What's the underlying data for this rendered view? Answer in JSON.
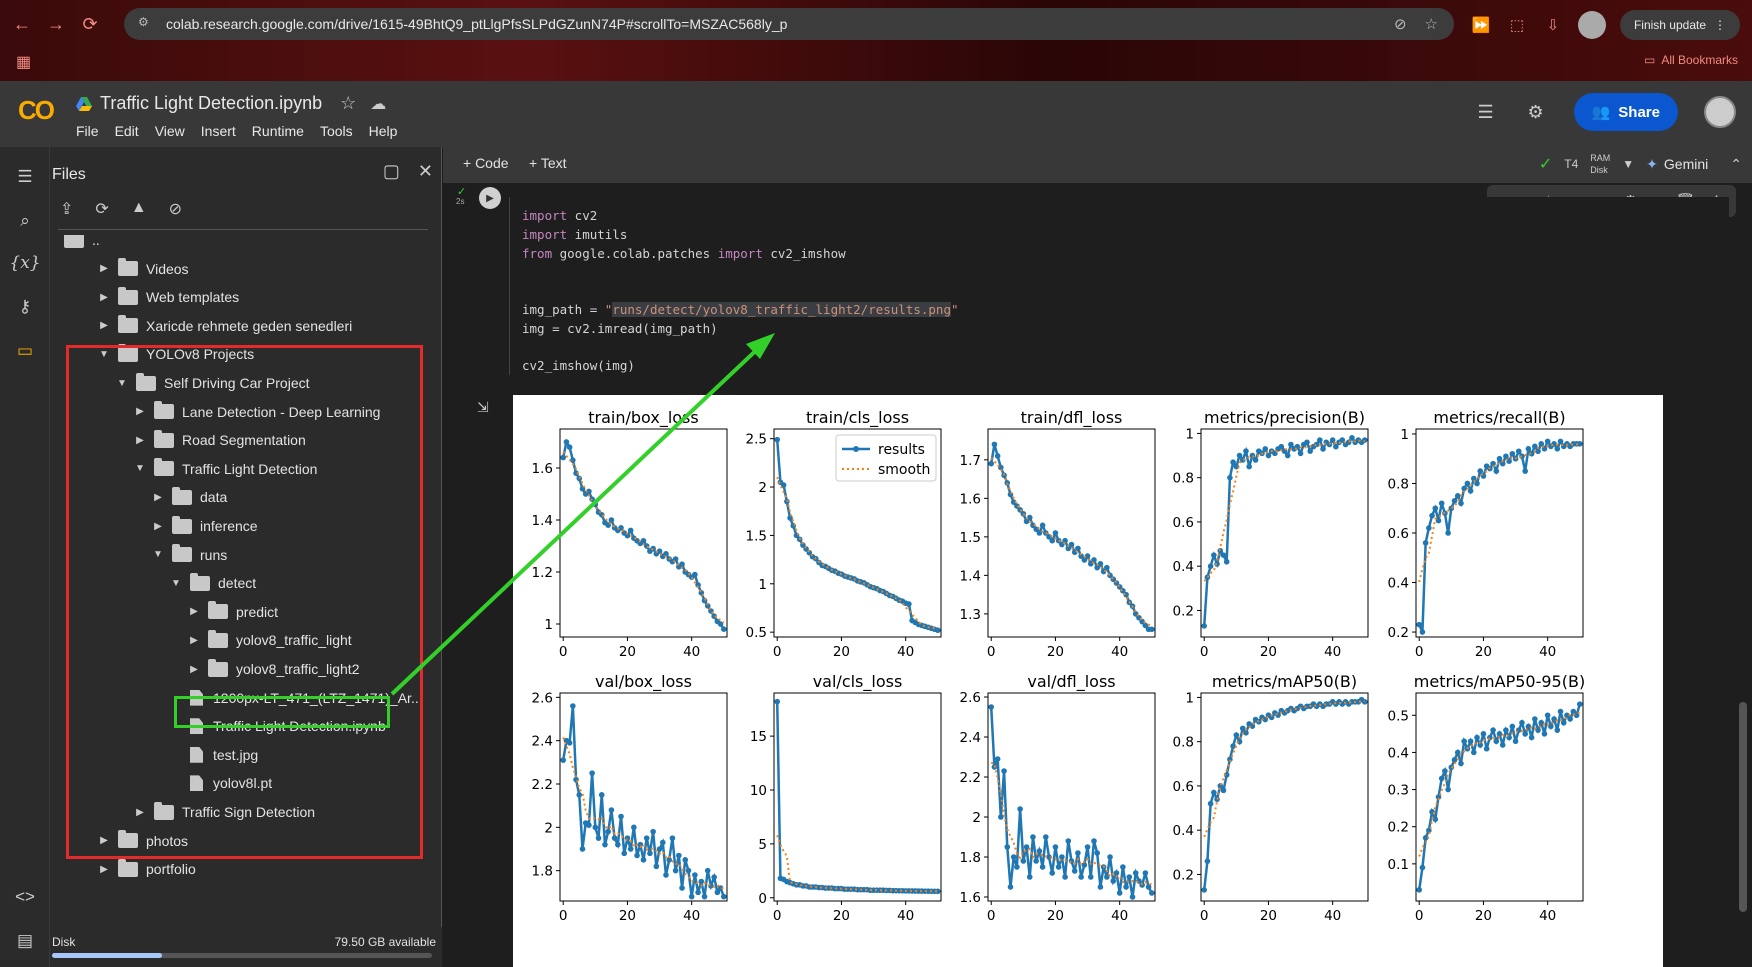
{
  "browser": {
    "url": "colab.research.google.com/drive/1615-49BhtQ9_ptLlgPfsSLPdGZunN74P#scrollTo=MSZAC568ly_p",
    "finish_update": "Finish update",
    "all_bookmarks": "All Bookmarks"
  },
  "colab": {
    "logo": "CO",
    "notebook_title": "Traffic Light Detection.ipynb",
    "menu": [
      "File",
      "Edit",
      "View",
      "Insert",
      "Runtime",
      "Tools",
      "Help"
    ],
    "share": "Share"
  },
  "files_panel": {
    "title": "Files",
    "items": [
      {
        "label": "..",
        "depth": 0,
        "type": "folder-up"
      },
      {
        "label": "Videos",
        "depth": 1,
        "type": "folder"
      },
      {
        "label": "Web templates",
        "depth": 1,
        "type": "folder"
      },
      {
        "label": "Xaricde rehmete geden senedleri",
        "depth": 1,
        "type": "folder"
      },
      {
        "label": "YOLOv8 Projects",
        "depth": 1,
        "type": "folder",
        "open": true
      },
      {
        "label": "Self Driving Car Project",
        "depth": 2,
        "type": "folder",
        "open": true
      },
      {
        "label": "Lane Detection - Deep Learning",
        "depth": 3,
        "type": "folder"
      },
      {
        "label": "Road Segmentation",
        "depth": 3,
        "type": "folder"
      },
      {
        "label": "Traffic Light Detection",
        "depth": 3,
        "type": "folder",
        "open": true
      },
      {
        "label": "data",
        "depth": 4,
        "type": "folder"
      },
      {
        "label": "inference",
        "depth": 4,
        "type": "folder"
      },
      {
        "label": "runs",
        "depth": 4,
        "type": "folder",
        "open": true
      },
      {
        "label": "detect",
        "depth": 5,
        "type": "folder",
        "open": true
      },
      {
        "label": "predict",
        "depth": 6,
        "type": "folder"
      },
      {
        "label": "yolov8_traffic_light",
        "depth": 6,
        "type": "folder"
      },
      {
        "label": "yolov8_traffic_light2",
        "depth": 6,
        "type": "folder"
      },
      {
        "label": "1200px-LT_471_(LTZ_1471)_Ar...",
        "depth": 5,
        "type": "file"
      },
      {
        "label": "Traffic Light Detection.ipynb",
        "depth": 5,
        "type": "file"
      },
      {
        "label": "test.jpg",
        "depth": 5,
        "type": "file"
      },
      {
        "label": "yolov8l.pt",
        "depth": 5,
        "type": "file"
      },
      {
        "label": "Traffic Sign Detection",
        "depth": 3,
        "type": "folder"
      },
      {
        "label": "photos",
        "depth": 1,
        "type": "folder"
      },
      {
        "label": "portfolio",
        "depth": 1,
        "type": "folder"
      }
    ],
    "disk_label": "Disk",
    "disk_available": "79.50 GB available",
    "disk_used_fraction": 0.29
  },
  "toolbar": {
    "code_btn": "+ Code",
    "text_btn": "+ Text",
    "gpu": "T4",
    "ram": "RAM",
    "disk": "Disk",
    "gemini": "Gemini"
  },
  "cell": {
    "exec_time": "2s",
    "lines": [
      [
        {
          "t": "import",
          "c": "kw"
        },
        {
          "t": " cv2",
          "c": ""
        }
      ],
      [
        {
          "t": "import",
          "c": "kw"
        },
        {
          "t": " imutils",
          "c": ""
        }
      ],
      [
        {
          "t": "from",
          "c": "kw"
        },
        {
          "t": " google.colab.patches ",
          "c": ""
        },
        {
          "t": "import",
          "c": "kw"
        },
        {
          "t": " cv2_imshow",
          "c": ""
        }
      ],
      [],
      [],
      [
        {
          "t": "img_path = ",
          "c": ""
        },
        {
          "t": "\"",
          "c": "str"
        },
        {
          "t": "runs/detect/yolov8_traffic_light2/results.png",
          "c": "str str-hl"
        },
        {
          "t": "\"",
          "c": "str"
        }
      ],
      [
        {
          "t": "img = cv2.imread(img_path)",
          "c": ""
        }
      ],
      [],
      [
        {
          "t": "cv2_imshow(img)",
          "c": ""
        }
      ]
    ]
  },
  "chart_data": [
    {
      "type": "line",
      "title": "train/box_loss",
      "legend": false,
      "ylim": [
        0.95,
        1.75
      ],
      "yticks": [
        1.0,
        1.2,
        1.4,
        1.6
      ],
      "xlim": [
        -1,
        51
      ],
      "xticks": [
        0,
        20,
        40
      ],
      "series": [
        {
          "name": "results",
          "values": [
            1.64,
            1.7,
            1.68,
            1.63,
            1.58,
            1.56,
            1.52,
            1.5,
            1.51,
            1.48,
            1.46,
            1.43,
            1.42,
            1.39,
            1.38,
            1.4,
            1.37,
            1.36,
            1.37,
            1.35,
            1.34,
            1.36,
            1.33,
            1.32,
            1.31,
            1.32,
            1.3,
            1.28,
            1.29,
            1.27,
            1.28,
            1.26,
            1.27,
            1.25,
            1.24,
            1.25,
            1.22,
            1.23,
            1.2,
            1.19,
            1.18,
            1.19,
            1.15,
            1.12,
            1.09,
            1.07,
            1.05,
            1.03,
            1.01,
            1.0,
            0.98
          ]
        }
      ]
    },
    {
      "type": "line",
      "title": "train/cls_loss",
      "legend": true,
      "ylim": [
        0.45,
        2.6
      ],
      "yticks": [
        0.5,
        1.0,
        1.5,
        2.0,
        2.5
      ],
      "xlim": [
        -1,
        51
      ],
      "xticks": [
        0,
        20,
        40
      ],
      "series": [
        {
          "name": "results",
          "values": [
            2.49,
            2.05,
            2.02,
            1.85,
            1.68,
            1.6,
            1.5,
            1.46,
            1.4,
            1.36,
            1.32,
            1.28,
            1.26,
            1.22,
            1.19,
            1.18,
            1.16,
            1.14,
            1.13,
            1.11,
            1.1,
            1.08,
            1.07,
            1.06,
            1.05,
            1.03,
            1.02,
            1.01,
            0.99,
            0.97,
            0.96,
            0.95,
            0.93,
            0.92,
            0.9,
            0.88,
            0.87,
            0.85,
            0.83,
            0.82,
            0.8,
            0.79,
            0.62,
            0.6,
            0.58,
            0.57,
            0.56,
            0.55,
            0.54,
            0.53,
            0.52
          ]
        },
        {
          "name": "smooth",
          "values": []
        }
      ]
    },
    {
      "type": "line",
      "title": "train/dfl_loss",
      "legend": false,
      "ylim": [
        1.24,
        1.78
      ],
      "yticks": [
        1.3,
        1.4,
        1.5,
        1.6,
        1.7
      ],
      "xlim": [
        -1,
        51
      ],
      "xticks": [
        0,
        20,
        40
      ],
      "series": [
        {
          "name": "results",
          "values": [
            1.69,
            1.74,
            1.71,
            1.68,
            1.66,
            1.64,
            1.61,
            1.59,
            1.58,
            1.57,
            1.56,
            1.54,
            1.55,
            1.53,
            1.52,
            1.51,
            1.53,
            1.51,
            1.5,
            1.49,
            1.51,
            1.49,
            1.48,
            1.49,
            1.47,
            1.48,
            1.46,
            1.47,
            1.45,
            1.44,
            1.45,
            1.43,
            1.44,
            1.42,
            1.43,
            1.41,
            1.42,
            1.4,
            1.39,
            1.38,
            1.37,
            1.36,
            1.35,
            1.33,
            1.32,
            1.3,
            1.29,
            1.28,
            1.27,
            1.26,
            1.26
          ]
        }
      ]
    },
    {
      "type": "line",
      "title": "metrics/precision(B)",
      "legend": false,
      "ylim": [
        0.08,
        1.02
      ],
      "yticks": [
        0.2,
        0.4,
        0.6,
        0.8,
        1.0
      ],
      "xlim": [
        -1,
        51
      ],
      "xticks": [
        0,
        20,
        40
      ],
      "series": [
        {
          "name": "results",
          "values": [
            0.13,
            0.35,
            0.4,
            0.45,
            0.41,
            0.47,
            0.45,
            0.42,
            0.8,
            0.87,
            0.85,
            0.9,
            0.88,
            0.92,
            0.85,
            0.9,
            0.88,
            0.92,
            0.91,
            0.93,
            0.9,
            0.92,
            0.91,
            0.93,
            0.94,
            0.92,
            0.9,
            0.95,
            0.93,
            0.94,
            0.91,
            0.95,
            0.96,
            0.92,
            0.94,
            0.95,
            0.97,
            0.93,
            0.96,
            0.95,
            0.97,
            0.94,
            0.96,
            0.97,
            0.95,
            0.96,
            0.98,
            0.96,
            0.97,
            0.96,
            0.97
          ]
        }
      ]
    },
    {
      "type": "line",
      "title": "metrics/recall(B)",
      "legend": false,
      "ylim": [
        0.18,
        1.02
      ],
      "yticks": [
        0.2,
        0.4,
        0.6,
        0.8,
        1.0
      ],
      "xlim": [
        -1,
        51
      ],
      "xticks": [
        0,
        20,
        40
      ],
      "series": [
        {
          "name": "results",
          "values": [
            0.23,
            0.2,
            0.56,
            0.62,
            0.67,
            0.7,
            0.65,
            0.72,
            0.68,
            0.6,
            0.7,
            0.73,
            0.75,
            0.72,
            0.78,
            0.8,
            0.77,
            0.82,
            0.8,
            0.85,
            0.83,
            0.87,
            0.86,
            0.88,
            0.85,
            0.9,
            0.88,
            0.91,
            0.89,
            0.92,
            0.9,
            0.93,
            0.91,
            0.85,
            0.94,
            0.92,
            0.95,
            0.93,
            0.96,
            0.94,
            0.97,
            0.95,
            0.96,
            0.94,
            0.97,
            0.95,
            0.96,
            0.95,
            0.96,
            0.96,
            0.96
          ]
        }
      ]
    },
    {
      "type": "line",
      "title": "val/box_loss",
      "legend": false,
      "ylim": [
        1.66,
        2.62
      ],
      "yticks": [
        1.8,
        2.0,
        2.2,
        2.4,
        2.6
      ],
      "xlim": [
        -1,
        51
      ],
      "xticks": [
        0,
        20,
        40
      ],
      "series": [
        {
          "name": "results",
          "values": [
            2.31,
            2.4,
            2.39,
            2.56,
            2.22,
            2.15,
            1.9,
            2.02,
            2.01,
            2.25,
            2.0,
            1.95,
            2.15,
            1.92,
            1.98,
            2.08,
            1.95,
            1.92,
            2.05,
            1.88,
            1.95,
            1.9,
            2.0,
            1.87,
            1.92,
            1.85,
            1.95,
            1.88,
            1.98,
            1.82,
            1.9,
            1.93,
            1.78,
            1.85,
            1.95,
            1.8,
            1.87,
            1.72,
            1.85,
            1.8,
            1.68,
            1.78,
            1.7,
            1.75,
            1.68,
            1.8,
            1.73,
            1.77,
            1.7,
            1.72,
            1.68
          ]
        }
      ]
    },
    {
      "type": "line",
      "title": "val/cls_loss",
      "legend": false,
      "ylim": [
        -0.3,
        19
      ],
      "yticks": [
        0,
        5,
        10,
        15
      ],
      "xlim": [
        -1,
        51
      ],
      "xticks": [
        0,
        20,
        40
      ],
      "series": [
        {
          "name": "results",
          "values": [
            18.2,
            1.8,
            1.7,
            1.5,
            1.4,
            1.3,
            1.2,
            1.2,
            1.1,
            1.1,
            1.0,
            1.0,
            1.0,
            0.95,
            0.95,
            0.9,
            0.9,
            0.9,
            0.85,
            0.85,
            0.85,
            0.8,
            0.8,
            0.8,
            0.8,
            0.75,
            0.75,
            0.75,
            0.75,
            0.7,
            0.7,
            0.7,
            0.7,
            0.7,
            0.68,
            0.68,
            0.66,
            0.66,
            0.65,
            0.65,
            0.64,
            0.64,
            0.63,
            0.63,
            0.62,
            0.62,
            0.61,
            0.61,
            0.6,
            0.6,
            0.6
          ]
        }
      ]
    },
    {
      "type": "line",
      "title": "val/dfl_loss",
      "legend": false,
      "ylim": [
        1.58,
        2.62
      ],
      "yticks": [
        1.6,
        1.8,
        2.0,
        2.2,
        2.4,
        2.6
      ],
      "xlim": [
        -1,
        51
      ],
      "xticks": [
        0,
        20,
        40
      ],
      "series": [
        {
          "name": "results",
          "values": [
            2.55,
            2.25,
            2.29,
            2.0,
            2.23,
            1.85,
            1.65,
            1.8,
            1.75,
            2.04,
            1.78,
            1.85,
            1.7,
            1.9,
            1.78,
            1.83,
            1.75,
            1.9,
            1.8,
            1.72,
            1.85,
            1.75,
            1.8,
            1.7,
            1.88,
            1.78,
            1.73,
            1.82,
            1.7,
            1.76,
            1.85,
            1.7,
            1.88,
            1.82,
            1.65,
            1.75,
            1.7,
            1.8,
            1.68,
            1.72,
            1.62,
            1.75,
            1.65,
            1.7,
            1.6,
            1.72,
            1.68,
            1.66,
            1.72,
            1.65,
            1.62
          ]
        }
      ]
    },
    {
      "type": "line",
      "title": "metrics/mAP50(B)",
      "legend": false,
      "ylim": [
        0.08,
        1.02
      ],
      "yticks": [
        0.2,
        0.4,
        0.6,
        0.8,
        1.0
      ],
      "xlim": [
        -1,
        51
      ],
      "xticks": [
        0,
        20,
        40
      ],
      "series": [
        {
          "name": "results",
          "values": [
            0.13,
            0.26,
            0.52,
            0.57,
            0.54,
            0.6,
            0.58,
            0.65,
            0.72,
            0.78,
            0.83,
            0.8,
            0.86,
            0.84,
            0.88,
            0.87,
            0.9,
            0.89,
            0.91,
            0.9,
            0.92,
            0.91,
            0.93,
            0.92,
            0.94,
            0.93,
            0.94,
            0.95,
            0.94,
            0.95,
            0.96,
            0.95,
            0.96,
            0.96,
            0.97,
            0.96,
            0.97,
            0.96,
            0.97,
            0.97,
            0.98,
            0.97,
            0.98,
            0.97,
            0.98,
            0.97,
            0.98,
            0.98,
            0.98,
            0.99,
            0.98
          ]
        }
      ]
    },
    {
      "type": "line",
      "title": "metrics/mAP50-95(B)",
      "legend": false,
      "ylim": [
        0.0,
        0.56
      ],
      "yticks": [
        0.1,
        0.2,
        0.3,
        0.4,
        0.5
      ],
      "xlim": [
        -1,
        51
      ],
      "xticks": [
        0,
        20,
        40
      ],
      "series": [
        {
          "name": "results",
          "values": [
            0.03,
            0.09,
            0.17,
            0.19,
            0.24,
            0.22,
            0.28,
            0.33,
            0.35,
            0.3,
            0.36,
            0.38,
            0.4,
            0.37,
            0.43,
            0.41,
            0.43,
            0.4,
            0.44,
            0.42,
            0.45,
            0.41,
            0.44,
            0.46,
            0.43,
            0.45,
            0.42,
            0.46,
            0.44,
            0.47,
            0.43,
            0.46,
            0.48,
            0.45,
            0.47,
            0.44,
            0.49,
            0.46,
            0.48,
            0.45,
            0.5,
            0.47,
            0.49,
            0.46,
            0.51,
            0.48,
            0.5,
            0.49,
            0.51,
            0.5,
            0.53
          ]
        }
      ]
    }
  ]
}
